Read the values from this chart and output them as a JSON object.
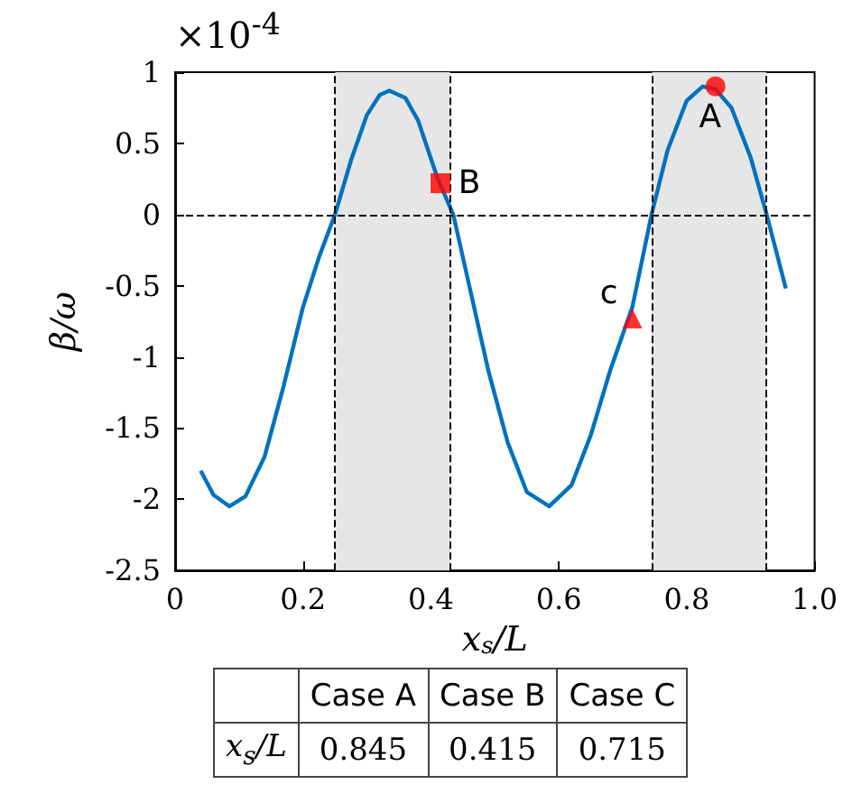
{
  "chart_data": {
    "type": "line",
    "xlabel": "x$_{s}$/L",
    "ylabel": "β/ω",
    "annotations": [
      "×10$^{-4}$",
      {
        "text": "A",
        "x": 0.845,
        "y": 0.9
      },
      {
        "text": "B",
        "x": 0.415,
        "y": 0.22
      },
      {
        "text": "c",
        "x": 0.715,
        "y": -0.73
      },
      "Case A",
      "Case B",
      "Case C",
      "0.845",
      "0.415",
      "0.715"
    ],
    "xlim": [
      0,
      1
    ],
    "xticks": [
      0,
      0.2,
      0.4,
      0.6,
      0.8,
      {
        "value": 1,
        "label": "1.0"
      }
    ],
    "ylim": [
      -2.5,
      1
    ],
    "yticks": [
      -2.5,
      -2,
      -1.5,
      -1,
      -0.5,
      0,
      0.5,
      1
    ],
    "series": [
      {
        "color": "#0072bd",
        "marker": "none",
        "x": [
          0.04,
          0.06,
          0.085,
          0.11,
          0.14,
          0.17,
          0.2,
          0.225,
          0.25,
          0.275,
          0.3,
          0.32,
          0.335,
          0.36,
          0.38,
          0.41,
          0.435,
          0.46,
          0.49,
          0.52,
          0.55,
          0.585,
          0.62,
          0.65,
          0.68,
          0.715,
          0.745,
          0.77,
          0.8,
          0.825,
          0.845,
          0.87,
          0.9,
          0.925,
          0.955
        ],
        "values": [
          -1.8,
          -1.97,
          -2.05,
          -1.98,
          -1.7,
          -1.2,
          -0.65,
          -0.3,
          0.0,
          0.38,
          0.7,
          0.84,
          0.87,
          0.82,
          0.66,
          0.26,
          0.0,
          -0.5,
          -1.1,
          -1.6,
          -1.95,
          -2.05,
          -1.9,
          -1.55,
          -1.1,
          -0.65,
          0.0,
          0.45,
          0.8,
          0.9,
          0.88,
          0.75,
          0.4,
          0.0,
          -0.52
        ]
      },
      {
        "type": "scatter",
        "color": "#ff0000",
        "marker": "circle",
        "x": [
          0.845
        ],
        "values": [
          0.9
        ]
      },
      {
        "type": "scatter",
        "color": "#ff0000",
        "marker": "square",
        "x": [
          0.415
        ],
        "values": [
          0.22
        ]
      },
      {
        "type": "scatter",
        "color": "#ff0000",
        "marker": "triangle",
        "x": [
          0.715
        ],
        "values": [
          -0.73
        ]
      }
    ],
    "bands": [
      {
        "axis": "x",
        "from": 0.25,
        "to": 0.43,
        "color": "#e6e6e6"
      },
      {
        "axis": "x",
        "from": 0.745,
        "to": 0.925,
        "color": "#e6e6e6"
      }
    ],
    "ref_lines": [
      {
        "axis": "x",
        "value": 0.25,
        "line_style": "dashed"
      },
      {
        "axis": "x",
        "value": 0.43,
        "line_style": "dashed"
      },
      {
        "axis": "x",
        "value": 0.745,
        "line_style": "dashed"
      },
      {
        "axis": "x",
        "value": 0.925,
        "line_style": "dashed"
      },
      {
        "axis": "y",
        "value": 0,
        "line_style": "dashed"
      }
    ]
  }
}
